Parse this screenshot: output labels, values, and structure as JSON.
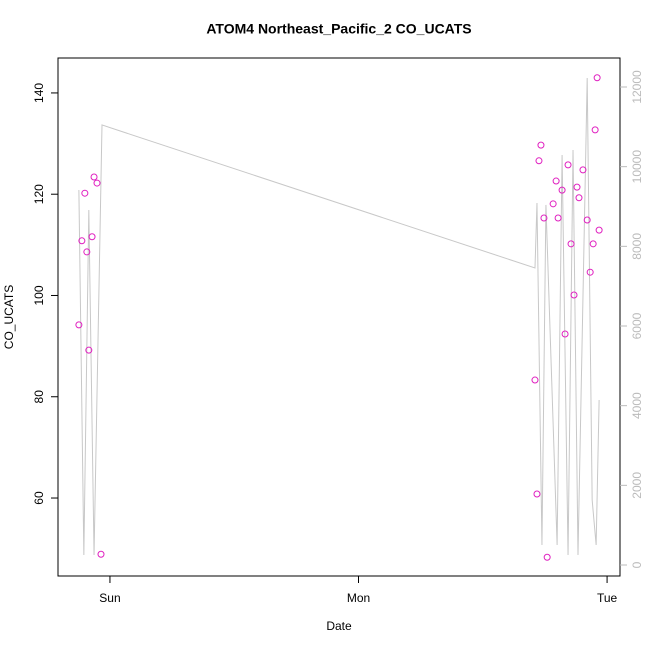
{
  "chart_data": {
    "type": "scatter",
    "title": "ATOM4 Northeast_Pacific_2 CO_UCATS",
    "x_label": "Date",
    "y_label": "CO_UCATS",
    "xlim": [
      -0.209,
      2.052
    ],
    "xticks": [
      {
        "value": 0,
        "label": "Sun"
      },
      {
        "value": 1,
        "label": "Mon"
      },
      {
        "value": 2,
        "label": "Tue"
      }
    ],
    "ylim": [
      44.6,
      146.9
    ],
    "yticks": [
      60,
      80,
      100,
      120,
      140
    ],
    "y2lim": [
      -276,
      12728
    ],
    "y2ticks": [
      0,
      2000,
      4000,
      6000,
      8000,
      10000,
      12000
    ],
    "series": [
      {
        "type": "scatter",
        "color": "#e020c0",
        "x": [
          -0.125,
          -0.113,
          -0.101,
          -0.093,
          -0.085,
          -0.072,
          -0.064,
          -0.052,
          -0.036,
          1.71,
          1.718,
          1.726,
          1.734,
          1.746,
          1.759,
          1.783,
          1.795,
          1.803,
          1.819,
          1.831,
          1.843,
          1.855,
          1.867,
          1.879,
          1.887,
          1.903,
          1.92,
          1.932,
          1.944,
          1.952,
          1.96,
          1.968
        ],
        "values": [
          94.2,
          110.8,
          120.2,
          108.6,
          89.2,
          111.6,
          123.4,
          122.2,
          48.9,
          83.3,
          60.8,
          126.6,
          129.7,
          115.3,
          48.3,
          118.1,
          122.6,
          115.3,
          120.8,
          92.4,
          125.8,
          110.2,
          100.1,
          121.4,
          119.3,
          124.8,
          114.9,
          104.6,
          110.2,
          132.7,
          143.0,
          112.9
        ]
      },
      {
        "type": "line",
        "axis": "y2",
        "color": "#c8c8c8",
        "x": [
          -0.125,
          -0.105,
          -0.085,
          -0.064,
          -0.032,
          1.71,
          1.718,
          1.738,
          1.754,
          1.799,
          1.819,
          1.843,
          1.863,
          1.883,
          1.92,
          1.94,
          1.956,
          1.968
        ],
        "values": [
          9415,
          251,
          8913,
          251,
          11047,
          7457,
          9089,
          502,
          9039,
          502,
          10294,
          251,
          10419,
          251,
          12227,
          1632,
          502,
          4143
        ]
      }
    ]
  }
}
